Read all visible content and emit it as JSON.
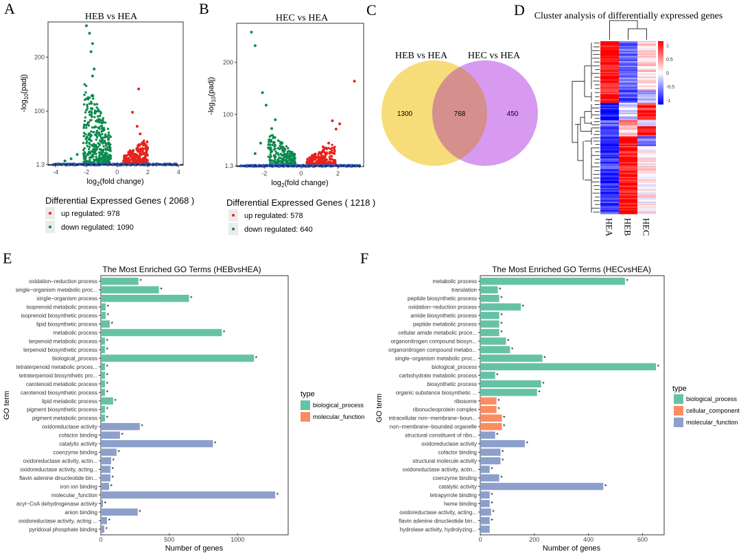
{
  "panel_letters": {
    "a": "A",
    "b": "B",
    "c": "C",
    "d": "D",
    "e": "E",
    "f": "F"
  },
  "colors": {
    "up": "#e8221b",
    "down": "#0a8a4e",
    "ns": "#2c55b0",
    "venn_left": "#f7dc7a",
    "venn_right": "#d79af0",
    "venn_overlap": "#d58f8c",
    "biological_process": "#66c2a5",
    "cellular_component": "#fc8d62",
    "molecular_function": "#8da0cb",
    "heat_high": "#ff0000",
    "heat_mid": "#ffffff",
    "heat_low": "#0000ff"
  },
  "chart_data": [
    {
      "id": "volcano_heb",
      "type": "scatter",
      "title": "HEB vs HEA",
      "xlabel": "log2(fold change)",
      "ylabel": "-log10(padj)",
      "xlim": [
        -4.5,
        4.3
      ],
      "ylim": [
        0,
        265
      ],
      "x_ticks": [
        -4,
        -2,
        0,
        2,
        4
      ],
      "y_ticks": [
        1.3,
        100,
        200
      ],
      "threshold_y": 1.3,
      "legend_title": "Differential Expressed Genes ( 2068 )",
      "legend": [
        {
          "label": "up regulated: 978",
          "class": "up"
        },
        {
          "label": "down regulated: 1090",
          "class": "down"
        }
      ],
      "highlight_points": [
        {
          "x": -2.0,
          "y": 258,
          "class": "down"
        },
        {
          "x": -1.8,
          "y": 244,
          "class": "down"
        },
        {
          "x": -1.6,
          "y": 225,
          "class": "down"
        },
        {
          "x": -1.7,
          "y": 210,
          "class": "down"
        },
        {
          "x": -1.5,
          "y": 178,
          "class": "down"
        },
        {
          "x": -1.6,
          "y": 165,
          "class": "down"
        },
        {
          "x": -2.6,
          "y": 20,
          "class": "down"
        },
        {
          "x": -3.0,
          "y": 12,
          "class": "down"
        },
        {
          "x": -3.4,
          "y": 8,
          "class": "down"
        },
        {
          "x": 1.4,
          "y": 141,
          "class": "up"
        },
        {
          "x": 1.0,
          "y": 98,
          "class": "up"
        },
        {
          "x": 1.3,
          "y": 72,
          "class": "up"
        },
        {
          "x": 1.5,
          "y": 58,
          "class": "up"
        },
        {
          "x": 1.8,
          "y": 38,
          "class": "up"
        },
        {
          "x": 1.9,
          "y": 28,
          "class": "up"
        }
      ],
      "clusters": [
        {
          "class": "down",
          "x_min": -2.2,
          "x_max": -0.4,
          "y_peak": 150,
          "count": 420
        },
        {
          "class": "up",
          "x_min": 0.4,
          "x_max": 2.0,
          "y_peak": 45,
          "count": 320
        },
        {
          "class": "ns",
          "x_min": -4.2,
          "x_max": 4.0,
          "y_peak": 3,
          "count": 320
        }
      ]
    },
    {
      "id": "volcano_hec",
      "type": "scatter",
      "title": "HEC vs HEA",
      "xlabel": "log2(fold change)",
      "ylabel": "-log10(padj)",
      "xlim": [
        -3.5,
        3.4
      ],
      "ylim": [
        0,
        275
      ],
      "x_ticks": [
        -2,
        0,
        2
      ],
      "y_ticks": [
        1.3,
        100,
        200
      ],
      "threshold_y": 1.3,
      "legend_title": "Differential Expressed Genes ( 1218 )",
      "legend": [
        {
          "label": "up regulated: 578",
          "class": "up"
        },
        {
          "label": "down regulated: 640",
          "class": "down"
        }
      ],
      "highlight_points": [
        {
          "x": -2.7,
          "y": 258,
          "class": "down"
        },
        {
          "x": -2.5,
          "y": 232,
          "class": "down"
        },
        {
          "x": -2.1,
          "y": 142,
          "class": "down"
        },
        {
          "x": -1.9,
          "y": 118,
          "class": "down"
        },
        {
          "x": -1.4,
          "y": 90,
          "class": "down"
        },
        {
          "x": -1.6,
          "y": 73,
          "class": "down"
        },
        {
          "x": -2.2,
          "y": 45,
          "class": "down"
        },
        {
          "x": -2.5,
          "y": 25,
          "class": "down"
        },
        {
          "x": 2.9,
          "y": 164,
          "class": "up"
        },
        {
          "x": 1.7,
          "y": 88,
          "class": "up"
        },
        {
          "x": 1.9,
          "y": 72,
          "class": "up"
        },
        {
          "x": 2.1,
          "y": 82,
          "class": "up"
        },
        {
          "x": 1.5,
          "y": 45,
          "class": "up"
        },
        {
          "x": 1.2,
          "y": 38,
          "class": "up"
        }
      ],
      "clusters": [
        {
          "class": "down",
          "x_min": -1.8,
          "x_max": -0.3,
          "y_peak": 60,
          "count": 260
        },
        {
          "class": "up",
          "x_min": 0.3,
          "x_max": 1.9,
          "y_peak": 40,
          "count": 240
        },
        {
          "class": "ns",
          "x_min": -3.3,
          "x_max": 3.2,
          "y_peak": 3,
          "count": 320
        }
      ]
    },
    {
      "id": "venn",
      "type": "venn",
      "sets": [
        {
          "name": "HEB vs HEA",
          "only": "1300"
        },
        {
          "name": "HEC vs HEA",
          "only": "450"
        }
      ],
      "overlap": "768"
    },
    {
      "id": "heatmap",
      "type": "heatmap",
      "title": "Cluster analysis of differentially expressed genes",
      "columns": [
        "HEA",
        "HEB",
        "HEC"
      ],
      "scale_ticks": [
        "1",
        "0.5",
        "0",
        "-0.5",
        "-1"
      ],
      "scale_range": [
        -1,
        1
      ],
      "blocks": [
        {
          "rows": 40,
          "values": [
            0.95,
            -0.55,
            0.15
          ]
        },
        {
          "rows": 10,
          "values": [
            0.9,
            -0.7,
            -0.35
          ]
        },
        {
          "rows": 14,
          "values": [
            -0.9,
            -0.2,
            0.85
          ]
        },
        {
          "rows": 5,
          "values": [
            -0.6,
            0.5,
            -0.3
          ]
        },
        {
          "rows": 8,
          "values": [
            -0.8,
            0.15,
            0.9
          ]
        },
        {
          "rows": 8,
          "values": [
            -0.85,
            0.95,
            -0.6
          ]
        },
        {
          "rows": 55,
          "values": [
            -0.75,
            0.9,
            0.05
          ]
        }
      ]
    },
    {
      "id": "go_heb",
      "type": "bar",
      "orientation": "horizontal",
      "title": "The Most Enriched GO Terms (HEBvsHEA)",
      "xlabel": "Number of genes",
      "ylabel": "GO term",
      "xlim": [
        0,
        1370
      ],
      "x_ticks": [
        0,
        500,
        1000
      ],
      "legend_title": "type",
      "legend": [
        {
          "label": "biological_process",
          "class": "biological_process"
        },
        {
          "label": "molecular_function",
          "class": "molecular_function"
        }
      ],
      "categories": [
        "oxidation−reduction process",
        "single−organism metabolic proc...",
        "single−organism process",
        "isoprenoid metabolic process",
        "isoprenoid biosynthetic process",
        "lipid biosynthetic process",
        "metabolic process",
        "terpenoid metabolic process",
        "terpenoid biosynthetic process",
        "biological_process",
        "tetraterpenoid metabolic proces...",
        "tetraterpenoid biosynthetic pro...",
        "carotenoid metabolic process",
        "carotenoid biosynthetic process",
        "lipid metabolic process",
        "pigment biosynthetic process",
        "pigment metabolic process",
        "oxidoreductase activity",
        "cofactor binding",
        "catalytic activity",
        "coenzyme binding",
        "oxidoreductase activity, actin...",
        "oxidoreductase activity, acting...",
        "flavin adenine dinucleotide bin...",
        "iron ion binding",
        "molecular_function",
        "acyl−CoA dehydrogenase activity",
        "anion binding",
        "oxidoreductase activity, acting ...",
        "pyridoxal phosphate binding"
      ],
      "values": [
        275,
        425,
        645,
        35,
        35,
        65,
        885,
        30,
        30,
        1120,
        30,
        30,
        30,
        30,
        90,
        30,
        30,
        285,
        140,
        820,
        115,
        75,
        70,
        70,
        60,
        1275,
        15,
        270,
        45,
        25
      ],
      "types": [
        "biological_process",
        "biological_process",
        "biological_process",
        "biological_process",
        "biological_process",
        "biological_process",
        "biological_process",
        "biological_process",
        "biological_process",
        "biological_process",
        "biological_process",
        "biological_process",
        "biological_process",
        "biological_process",
        "biological_process",
        "biological_process",
        "biological_process",
        "molecular_function",
        "molecular_function",
        "molecular_function",
        "molecular_function",
        "molecular_function",
        "molecular_function",
        "molecular_function",
        "molecular_function",
        "molecular_function",
        "molecular_function",
        "molecular_function",
        "molecular_function",
        "molecular_function"
      ],
      "marker": "*"
    },
    {
      "id": "go_hec",
      "type": "bar",
      "orientation": "horizontal",
      "title": "The Most Enriched GO Terms (HECvsHEA)",
      "xlabel": "Number of genes",
      "ylabel": "GO term",
      "xlim": [
        0,
        680
      ],
      "x_ticks": [
        0,
        200,
        400,
        600
      ],
      "legend_title": "type",
      "legend": [
        {
          "label": "biological_process",
          "class": "biological_process"
        },
        {
          "label": "cellular_component",
          "class": "cellular_component"
        },
        {
          "label": "molecular_function",
          "class": "molecular_function"
        }
      ],
      "categories": [
        "metabolic process",
        "translation",
        "peptide biosynthetic process",
        "oxidation−reduction process",
        "amide biosynthetic process",
        "peptide metabolic process",
        "cellular amide metabolic proce...",
        "organonitrogen compound biosyn...",
        "organonitrogen compound metabo...",
        "single−organism metabolic proc...",
        "biological_process",
        "carbohydrate metabolic process",
        "biosynthetic process",
        "organic substance biosynthetic ...",
        "ribosome",
        "ribonucleoprotein complex",
        "intracellular non−membrane−boun...",
        "non−membrane−bounded organelle",
        "structural constituent of ribo...",
        "oxidoreductase activity",
        "cofactor binding",
        "structural molecule activity",
        "oxidoreductase activity, actin...",
        "coenzyme binding",
        "catalytic activity",
        "tetrapyrrole binding",
        "heme binding",
        "oxidoreductase activity, acting...",
        "flavin adenine dinucleotide bin...",
        "hydrolase activity, hydrolyzing..."
      ],
      "values": [
        535,
        65,
        70,
        150,
        70,
        70,
        70,
        95,
        110,
        230,
        650,
        55,
        225,
        210,
        60,
        60,
        80,
        80,
        55,
        165,
        75,
        75,
        35,
        70,
        455,
        35,
        35,
        40,
        35,
        35
      ],
      "types": [
        "biological_process",
        "biological_process",
        "biological_process",
        "biological_process",
        "biological_process",
        "biological_process",
        "biological_process",
        "biological_process",
        "biological_process",
        "biological_process",
        "biological_process",
        "biological_process",
        "biological_process",
        "biological_process",
        "cellular_component",
        "cellular_component",
        "cellular_component",
        "cellular_component",
        "molecular_function",
        "molecular_function",
        "molecular_function",
        "molecular_function",
        "molecular_function",
        "molecular_function",
        "molecular_function",
        "molecular_function",
        "molecular_function",
        "molecular_function",
        "molecular_function",
        "molecular_function"
      ],
      "starred": [
        true,
        true,
        true,
        true,
        true,
        true,
        true,
        true,
        true,
        true,
        true,
        true,
        true,
        true,
        true,
        true,
        true,
        true,
        true,
        true,
        true,
        true,
        true,
        true,
        true,
        true,
        true,
        true,
        true,
        false
      ],
      "marker": "*"
    }
  ]
}
